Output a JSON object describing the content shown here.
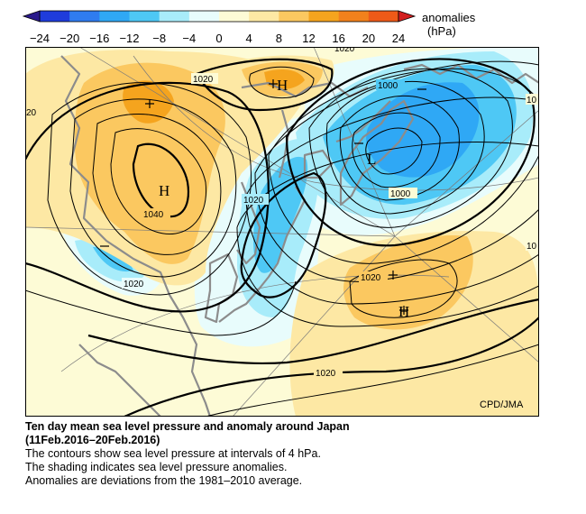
{
  "legend": {
    "title": "anomalies",
    "unit": "(hPa)",
    "ticks": [
      "−24",
      "−20",
      "−16",
      "−12",
      "−8",
      "−4",
      "0",
      "4",
      "8",
      "12",
      "16",
      "20",
      "24"
    ],
    "colors": [
      "#1f3cdc",
      "#2f7cf0",
      "#2fa8f5",
      "#4ec8f5",
      "#a8ecfa",
      "#e8fcfc",
      "#fdfbd6",
      "#fde8a4",
      "#fbc860",
      "#f5a41e",
      "#f2811c",
      "#ee5a18"
    ]
  },
  "map": {
    "contour_labels": [
      "1020",
      "1020",
      "1000",
      "1000",
      "1040",
      "1020",
      "1020",
      "1020",
      "1020",
      "20",
      "10",
      "10"
    ],
    "centers": [
      {
        "mark": "H",
        "kind": "high"
      },
      {
        "mark": "H",
        "kind": "high"
      },
      {
        "mark": "L",
        "kind": "low"
      },
      {
        "mark": "H",
        "kind": "high"
      }
    ],
    "credit": "CPD/JMA"
  },
  "caption": {
    "title_line1": "Ten day mean sea level pressure and anomaly around Japan",
    "title_line2": "(11Feb.2016–20Feb.2016)",
    "line1": "The contours show sea level pressure at intervals of 4 hPa.",
    "line2": "The shading indicates sea level pressure anomalies.",
    "line3": "Anomalies are deviations from the 1981–2010 average."
  }
}
